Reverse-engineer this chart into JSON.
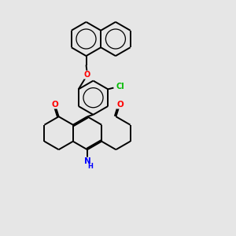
{
  "background_color": "#e6e6e6",
  "bond_color": "#000000",
  "bond_width": 1.4,
  "atom_colors": {
    "O": "#ff0000",
    "N": "#0000ff",
    "Cl": "#00bb00",
    "C": "#000000",
    "H": "#000000"
  },
  "figsize": [
    3.0,
    3.0
  ],
  "dpi": 100
}
